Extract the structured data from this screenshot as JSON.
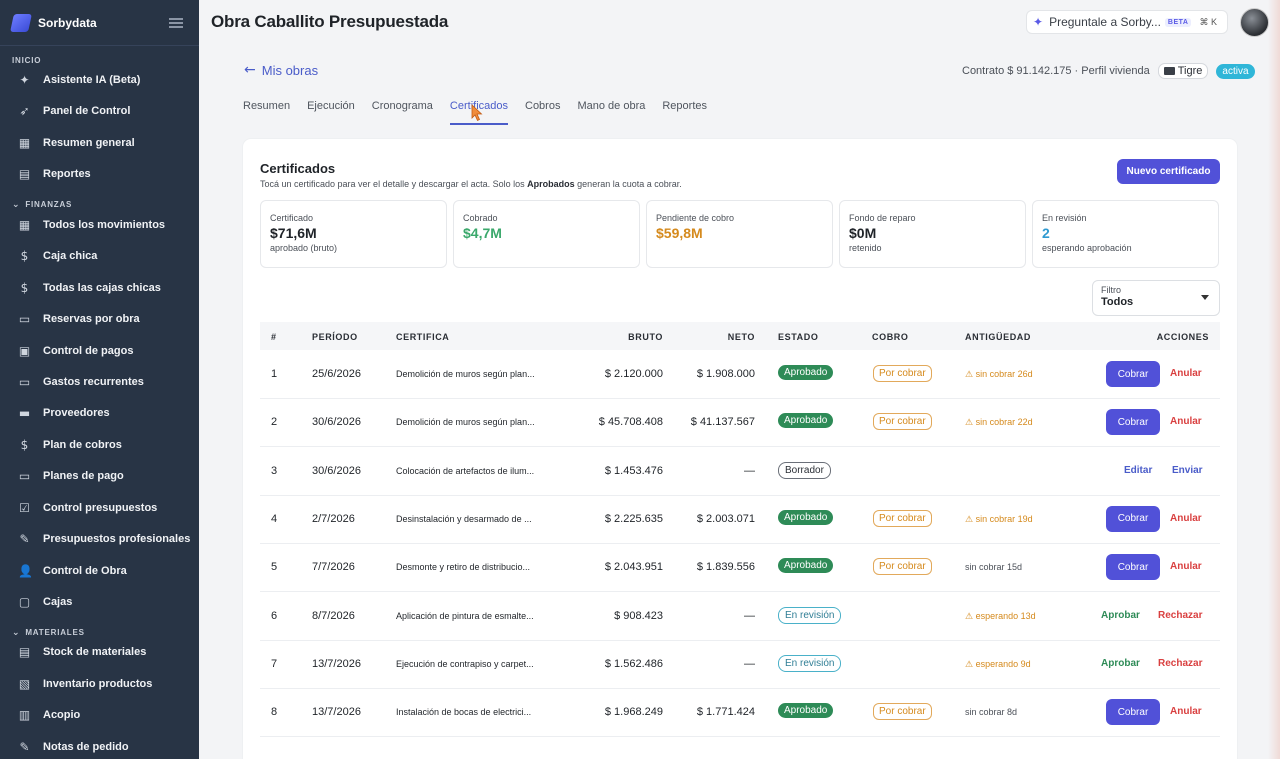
{
  "app": {
    "name": "Sorbydata"
  },
  "sidebar": {
    "section_inicio": "INICIO",
    "section_finanzas": "FINANZAS",
    "section_materiales": "MATERIALES",
    "items": [
      {
        "label": "Asistente IA (Beta)",
        "icon": "sparkle-icon"
      },
      {
        "label": "Panel de Control",
        "icon": "rocket-icon"
      },
      {
        "label": "Resumen general",
        "icon": "dashboard-icon"
      },
      {
        "label": "Reportes",
        "icon": "chart-icon"
      },
      {
        "label": "Todos los movimientos",
        "icon": "grid-icon"
      },
      {
        "label": "Caja chica",
        "icon": "dollar-icon"
      },
      {
        "label": "Todas las cajas chicas",
        "icon": "dollar-icon"
      },
      {
        "label": "Reservas por obra",
        "icon": "book-icon"
      },
      {
        "label": "Control de pagos",
        "icon": "wallet-icon"
      },
      {
        "label": "Gastos recurrentes",
        "icon": "repeat-icon"
      },
      {
        "label": "Proveedores",
        "icon": "store-icon"
      },
      {
        "label": "Plan de cobros",
        "icon": "dollar-icon"
      },
      {
        "label": "Planes de pago",
        "icon": "card-icon"
      },
      {
        "label": "Control presupuestos",
        "icon": "checklist-icon"
      },
      {
        "label": "Presupuestos profesionales",
        "icon": "edit-icon"
      },
      {
        "label": "Control de Obra",
        "icon": "user-icon"
      },
      {
        "label": "Cajas",
        "icon": "box-icon"
      },
      {
        "label": "Stock de materiales",
        "icon": "stack-icon"
      },
      {
        "label": "Inventario productos",
        "icon": "inventory-icon"
      },
      {
        "label": "Acopio",
        "icon": "archive-icon"
      },
      {
        "label": "Notas de pedido",
        "icon": "note-icon"
      }
    ]
  },
  "header": {
    "title": "Obra Caballito Presupuestada",
    "ask_label": "Preguntale a Sorby...",
    "ask_beta": "BETA",
    "ask_kbd": "⌘ K"
  },
  "project": {
    "back_label": "Mis obras",
    "contract": "Contrato $ 91.142.175 · Perfil vivienda",
    "location": "Tigre",
    "status": "activa"
  },
  "tabs": [
    "Resumen",
    "Ejecución",
    "Cronograma",
    "Certificados",
    "Cobros",
    "Mano de obra",
    "Reportes"
  ],
  "certificados": {
    "title": "Certificados",
    "subtitle_pre": "Tocá un certificado para ver el detalle y descargar el acta. Solo los ",
    "subtitle_bold": "Aprobados",
    "subtitle_post": " generan la cuota a cobrar.",
    "new_button": "Nuevo certificado",
    "stats": [
      {
        "label": "Certificado",
        "value": "$71,6M",
        "sub": "aprobado (bruto)",
        "color": "#1f2328"
      },
      {
        "label": "Cobrado",
        "value": "$4,7M",
        "sub": "",
        "color": "#3aa86b"
      },
      {
        "label": "Pendiente de cobro",
        "value": "$59,8M",
        "sub": "",
        "color": "#d58a1d"
      },
      {
        "label": "Fondo de reparo",
        "value": "$0M",
        "sub": "retenido",
        "color": "#1f2328"
      },
      {
        "label": "En revisión",
        "value": "2",
        "sub": "esperando aprobación",
        "color": "#2f9ad1"
      }
    ],
    "filter": {
      "label": "Filtro",
      "value": "Todos"
    },
    "columns": {
      "num": "#",
      "periodo": "PERÍODO",
      "certifica": "CERTIFICA",
      "bruto": "BRUTO",
      "neto": "NETO",
      "estado": "ESTADO",
      "cobro": "COBRO",
      "antiguedad": "ANTIGÜEDAD",
      "acciones": "ACCIONES"
    },
    "rows": [
      {
        "num": "1",
        "periodo": "25/6/2026",
        "certifica": "Demolición de muros según plan...",
        "bruto": "$ 2.120.000",
        "neto": "$ 1.908.000",
        "estado": "Aprobado",
        "cobro": "Por cobrar",
        "antig": "⚠ sin cobrar 26d",
        "a1": "Cobrar",
        "a2": "Anular"
      },
      {
        "num": "2",
        "periodo": "30/6/2026",
        "certifica": "Demolición de muros según plan...",
        "bruto": "$ 45.708.408",
        "neto": "$ 41.137.567",
        "estado": "Aprobado",
        "cobro": "Por cobrar",
        "antig": "⚠ sin cobrar 22d",
        "a1": "Cobrar",
        "a2": "Anular"
      },
      {
        "num": "3",
        "periodo": "30/6/2026",
        "certifica": "Colocación de artefactos de ilum...",
        "bruto": "$ 1.453.476",
        "neto": "—",
        "estado": "Borrador",
        "cobro": "",
        "antig": "",
        "a1": "Editar",
        "a2": "Enviar"
      },
      {
        "num": "4",
        "periodo": "2/7/2026",
        "certifica": "Desinstalación y desarmado de ...",
        "bruto": "$ 2.225.635",
        "neto": "$ 2.003.071",
        "estado": "Aprobado",
        "cobro": "Por cobrar",
        "antig": "⚠ sin cobrar 19d",
        "a1": "Cobrar",
        "a2": "Anular"
      },
      {
        "num": "5",
        "periodo": "7/7/2026",
        "certifica": "Desmonte y retiro de distribucio...",
        "bruto": "$ 2.043.951",
        "neto": "$ 1.839.556",
        "estado": "Aprobado",
        "cobro": "Por cobrar",
        "antig": "sin cobrar 15d",
        "a1": "Cobrar",
        "a2": "Anular"
      },
      {
        "num": "6",
        "periodo": "8/7/2026",
        "certifica": "Aplicación de pintura de esmalte...",
        "bruto": "$ 908.423",
        "neto": "—",
        "estado": "En revisión",
        "cobro": "",
        "antig": "⚠ esperando 13d",
        "a1": "Aprobar",
        "a2": "Rechazar"
      },
      {
        "num": "7",
        "periodo": "13/7/2026",
        "certifica": "Ejecución de contrapiso y carpet...",
        "bruto": "$ 1.562.486",
        "neto": "—",
        "estado": "En revisión",
        "cobro": "",
        "antig": "⚠ esperando 9d",
        "a1": "Aprobar",
        "a2": "Rechazar"
      },
      {
        "num": "8",
        "periodo": "13/7/2026",
        "certifica": "Instalación de bocas de electrici...",
        "bruto": "$ 1.968.249",
        "neto": "$ 1.771.424",
        "estado": "Aprobado",
        "cobro": "Por cobrar",
        "antig": "sin cobrar 8d",
        "a1": "Cobrar",
        "a2": "Anular"
      }
    ]
  }
}
